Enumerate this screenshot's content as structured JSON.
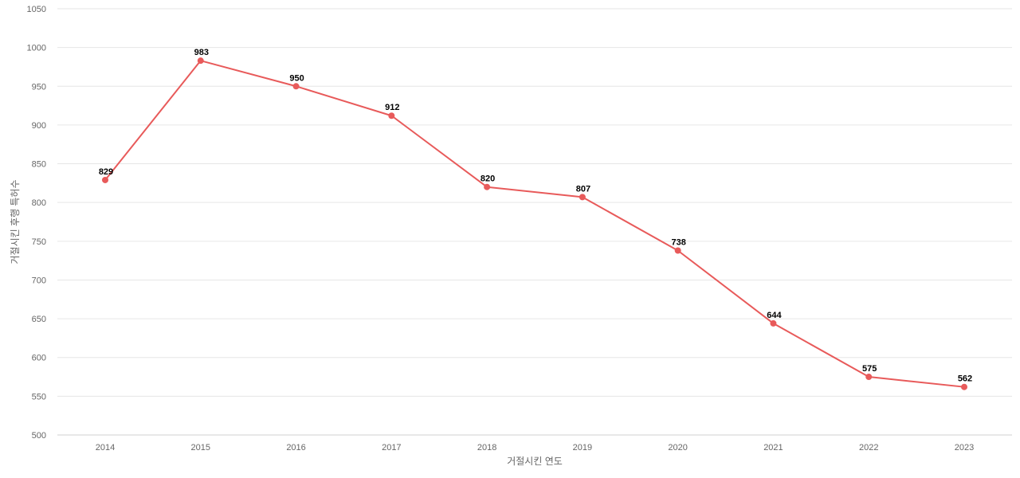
{
  "chart_data": {
    "type": "line",
    "title": "",
    "xlabel": "거절시킨 연도",
    "ylabel": "거절시킨 후행 특허수",
    "x": [
      "2014",
      "2015",
      "2016",
      "2017",
      "2018",
      "2019",
      "2020",
      "2021",
      "2022",
      "2023"
    ],
    "series": [
      {
        "values": [
          829,
          983,
          950,
          912,
          820,
          807,
          738,
          644,
          575,
          562
        ],
        "color": "#e85a5a"
      }
    ],
    "ylim": [
      500,
      1050
    ],
    "yticks": [
      500,
      550,
      600,
      650,
      700,
      750,
      800,
      850,
      900,
      950,
      1000,
      1050
    ],
    "grid": true,
    "legend": "none",
    "data_labels": true
  }
}
